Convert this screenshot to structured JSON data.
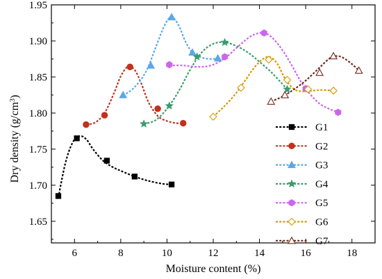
{
  "chart_data": {
    "type": "line",
    "title": "",
    "xlabel": "Moisture content (%)",
    "ylabel": "Dry density (g/cm³)",
    "ylabel_parts": {
      "text": "Dry density (g/cm",
      "sup": "3",
      "close": ")"
    },
    "xlim": [
      5,
      19
    ],
    "ylim": [
      1.62,
      1.95
    ],
    "xticks": [
      6,
      8,
      10,
      12,
      14,
      16,
      18
    ],
    "yticks": [
      1.65,
      1.7,
      1.75,
      1.8,
      1.85,
      1.9,
      1.95
    ],
    "xtick_labels": [
      "6",
      "8",
      "10",
      "12",
      "14",
      "16",
      "18"
    ],
    "ytick_labels": [
      "1.65",
      "1.70",
      "1.75",
      "1.80",
      "1.85",
      "1.90",
      "1.95"
    ],
    "legend_position": "lower-right",
    "series": [
      {
        "name": "G1",
        "color": "#000000",
        "marker": "square",
        "filled": true,
        "x": [
          5.3,
          6.1,
          7.4,
          8.6,
          10.2
        ],
        "y": [
          1.685,
          1.765,
          1.734,
          1.712,
          1.701
        ],
        "fit_x": [
          5.3,
          5.6,
          5.9,
          6.2,
          6.5,
          6.8,
          7.2,
          7.6,
          8.0,
          8.6,
          9.2,
          9.8,
          10.2
        ],
        "fit_y": [
          1.683,
          1.73,
          1.758,
          1.768,
          1.764,
          1.75,
          1.735,
          1.726,
          1.72,
          1.712,
          1.706,
          1.702,
          1.701
        ]
      },
      {
        "name": "G2",
        "color": "#c0321e",
        "marker": "circle",
        "filled": true,
        "x": [
          6.5,
          7.3,
          8.4,
          9.6,
          10.7
        ],
        "y": [
          1.784,
          1.797,
          1.864,
          1.806,
          1.786
        ],
        "fit_x": [
          6.5,
          6.9,
          7.3,
          7.7,
          8.0,
          8.3,
          8.6,
          8.9,
          9.2,
          9.6,
          10.0,
          10.4,
          10.7
        ],
        "fit_y": [
          1.784,
          1.787,
          1.8,
          1.827,
          1.851,
          1.864,
          1.86,
          1.84,
          1.815,
          1.796,
          1.789,
          1.786,
          1.786
        ]
      },
      {
        "name": "G3",
        "color": "#5aa8e8",
        "marker": "triangle",
        "filled": true,
        "x": [
          8.1,
          9.3,
          10.2,
          11.1,
          12.2
        ],
        "y": [
          1.825,
          1.866,
          1.933,
          1.884,
          1.876
        ],
        "fit_x": [
          8.1,
          8.6,
          9.1,
          9.5,
          9.9,
          10.2,
          10.5,
          10.8,
          11.1,
          11.5,
          11.9,
          12.2
        ],
        "fit_y": [
          1.824,
          1.836,
          1.858,
          1.89,
          1.922,
          1.933,
          1.922,
          1.899,
          1.884,
          1.877,
          1.875,
          1.876
        ]
      },
      {
        "name": "G4",
        "color": "#3a9c6e",
        "marker": "star",
        "filled": true,
        "x": [
          9.0,
          10.1,
          11.3,
          12.5,
          15.2
        ],
        "y": [
          1.785,
          1.81,
          1.878,
          1.898,
          1.833
        ],
        "fit_x": [
          9.0,
          9.5,
          10.0,
          10.5,
          11.0,
          11.5,
          12.0,
          12.5,
          13.0,
          13.5,
          14.0,
          14.5,
          15.0,
          15.2
        ],
        "fit_y": [
          1.785,
          1.79,
          1.806,
          1.83,
          1.86,
          1.884,
          1.896,
          1.898,
          1.893,
          1.884,
          1.871,
          1.857,
          1.84,
          1.833
        ]
      },
      {
        "name": "G5",
        "color": "#cc66ee",
        "marker": "hexagon",
        "filled": true,
        "x": [
          10.1,
          12.5,
          14.2,
          16.0,
          17.4
        ],
        "y": [
          1.867,
          1.878,
          1.911,
          1.834,
          1.801
        ],
        "fit_x": [
          10.1,
          10.7,
          11.3,
          11.9,
          12.5,
          13.1,
          13.6,
          14.0,
          14.3,
          14.6,
          15.0,
          15.4,
          15.8,
          16.2,
          16.6,
          17.0,
          17.4
        ],
        "fit_y": [
          1.866,
          1.866,
          1.864,
          1.866,
          1.876,
          1.893,
          1.906,
          1.911,
          1.91,
          1.903,
          1.887,
          1.866,
          1.843,
          1.826,
          1.813,
          1.806,
          1.801
        ]
      },
      {
        "name": "G6",
        "color": "#d49a00",
        "marker": "diamond",
        "filled": false,
        "x": [
          12.0,
          13.2,
          14.4,
          15.2,
          16.1,
          17.2
        ],
        "y": [
          1.795,
          1.835,
          1.874,
          1.846,
          1.833,
          1.831
        ],
        "fit_x": [
          12.0,
          12.5,
          13.0,
          13.4,
          13.8,
          14.2,
          14.5,
          14.8,
          15.1,
          15.5,
          15.9,
          16.3,
          16.7,
          17.2
        ],
        "fit_y": [
          1.795,
          1.81,
          1.828,
          1.846,
          1.864,
          1.876,
          1.877,
          1.867,
          1.848,
          1.833,
          1.83,
          1.831,
          1.832,
          1.831
        ]
      },
      {
        "name": "G7",
        "color": "#6e2a1a",
        "marker": "triangle",
        "filled": false,
        "x": [
          14.5,
          15.1,
          16.6,
          17.2,
          18.3
        ],
        "y": [
          1.816,
          1.825,
          1.856,
          1.879,
          1.859
        ],
        "fit_x": [
          14.5,
          15.0,
          15.5,
          16.0,
          16.5,
          17.0,
          17.3,
          17.6,
          18.0,
          18.3
        ],
        "fit_y": [
          1.816,
          1.823,
          1.833,
          1.845,
          1.86,
          1.875,
          1.879,
          1.877,
          1.868,
          1.859
        ]
      }
    ]
  }
}
